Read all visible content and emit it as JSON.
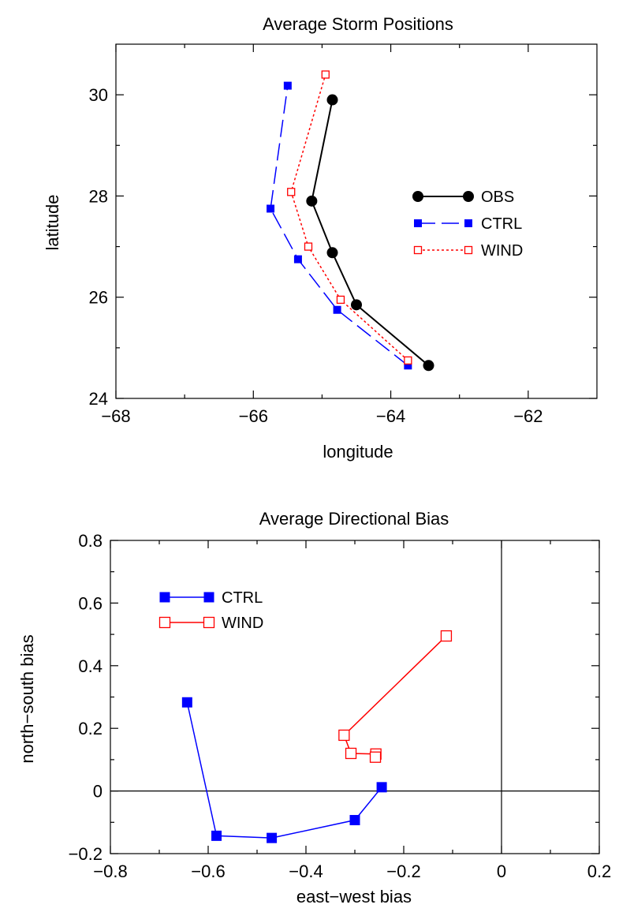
{
  "chart_data": [
    {
      "type": "line",
      "title": "Average Storm Positions",
      "xlabel": "longitude",
      "ylabel": "latitude",
      "xlim": [
        -68,
        -61
      ],
      "ylim": [
        24,
        31
      ],
      "xticks": [
        -68,
        -66,
        -64,
        -62
      ],
      "yticks": [
        24,
        26,
        28,
        30
      ],
      "xtick_labels": [
        "−68",
        "−66",
        "−64",
        "−62"
      ],
      "ytick_labels": [
        "24",
        "26",
        "28",
        "30"
      ],
      "legend_position": "center-right",
      "series": [
        {
          "name": "OBS",
          "color": "#000000",
          "marker": "filled-circle",
          "line": "solid",
          "x": [
            -63.45,
            -64.5,
            -64.85,
            -65.15,
            -64.85
          ],
          "y": [
            24.65,
            25.85,
            26.88,
            27.9,
            29.9
          ]
        },
        {
          "name": "CTRL",
          "color": "#0000ff",
          "marker": "filled-square",
          "line": "long-dash",
          "x": [
            -63.75,
            -64.78,
            -65.35,
            -65.75,
            -65.5
          ],
          "y": [
            24.65,
            25.75,
            26.75,
            27.75,
            30.18
          ]
        },
        {
          "name": "WIND",
          "color": "#ff0000",
          "marker": "open-square",
          "line": "dotted",
          "x": [
            -63.75,
            -64.73,
            -65.2,
            -65.45,
            -64.95
          ],
          "y": [
            24.75,
            25.95,
            27.0,
            28.08,
            30.4
          ]
        }
      ]
    },
    {
      "type": "line",
      "title": "Average Directional Bias",
      "xlabel": "east−west bias",
      "ylabel": "north−south bias",
      "xlim": [
        -0.8,
        0.2
      ],
      "ylim": [
        -0.2,
        0.8
      ],
      "xticks": [
        -0.8,
        -0.6,
        -0.4,
        -0.2,
        0,
        0.2
      ],
      "yticks": [
        -0.2,
        0,
        0.2,
        0.4,
        0.6,
        0.8
      ],
      "xtick_labels": [
        "−0.8",
        "−0.6",
        "−0.4",
        "−0.2",
        "0",
        "0.2"
      ],
      "ytick_labels": [
        "−0.2",
        "0",
        "0.2",
        "0.4",
        "0.6",
        "0.8"
      ],
      "reference_lines": {
        "x": 0,
        "y": 0
      },
      "legend_position": "top-left",
      "series": [
        {
          "name": "CTRL",
          "color": "#0000ff",
          "marker": "filled-square",
          "line": "solid",
          "x": [
            -0.643,
            -0.583,
            -0.47,
            -0.3,
            -0.245
          ],
          "y": [
            0.283,
            -0.143,
            -0.15,
            -0.093,
            0.012
          ]
        },
        {
          "name": "WIND",
          "color": "#ff0000",
          "marker": "open-square",
          "line": "solid",
          "x": [
            -0.113,
            -0.322,
            -0.308,
            -0.257,
            -0.258
          ],
          "y": [
            0.495,
            0.178,
            0.12,
            0.118,
            0.108
          ]
        }
      ]
    }
  ]
}
